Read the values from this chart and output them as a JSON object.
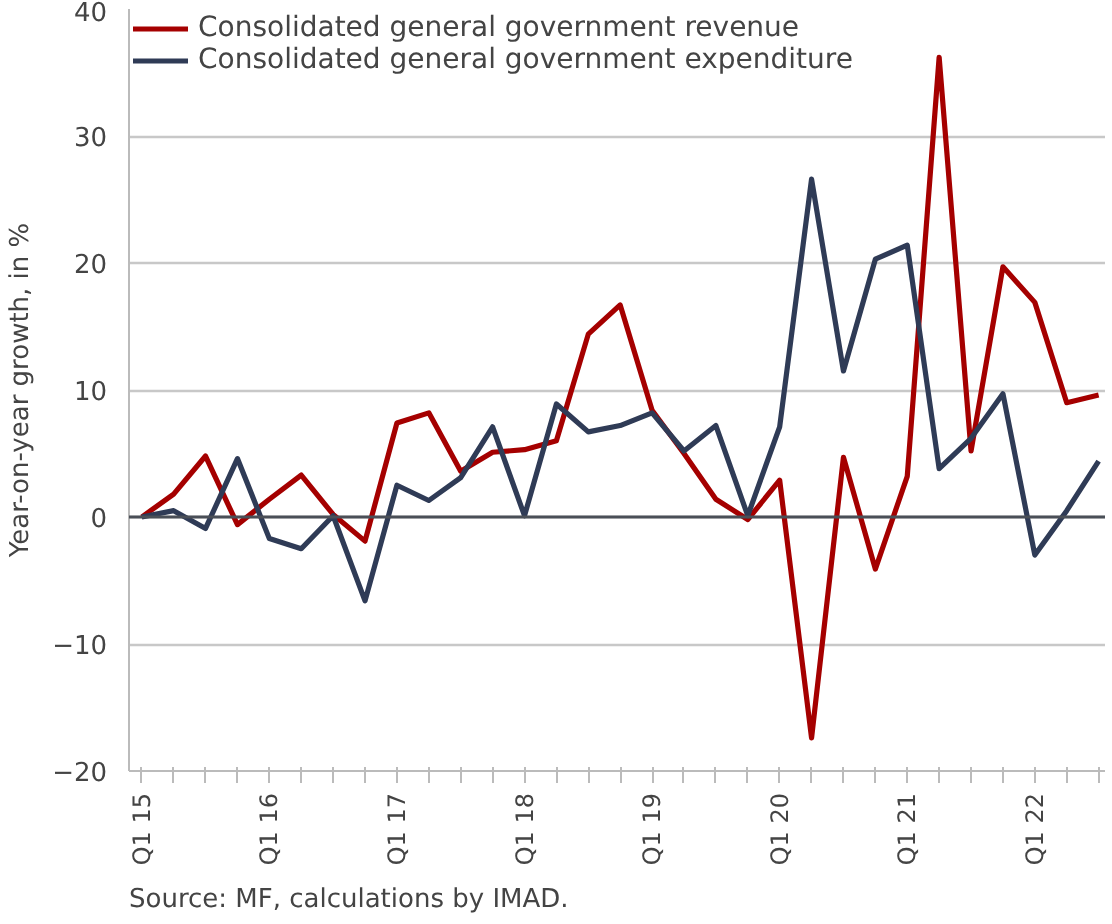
{
  "chart_data": {
    "type": "line",
    "categories": [
      "Q1 15",
      null,
      null,
      null,
      "Q1 16",
      null,
      null,
      null,
      "Q1 17",
      null,
      null,
      null,
      "Q1 18",
      null,
      null,
      null,
      "Q1 19",
      null,
      null,
      null,
      "Q1 20",
      null,
      null,
      null,
      "Q1 21",
      null,
      null,
      null,
      "Q1 22",
      null,
      null
    ],
    "series": [
      {
        "name": "Consolidated general government revenue",
        "color": "#a50000",
        "values": [
          0,
          1.8,
          4.8,
          -0.6,
          1.4,
          3.3,
          0.2,
          -1.9,
          7.4,
          8.2,
          3.6,
          5.1,
          5.3,
          6.0,
          14.4,
          16.7,
          8.4,
          5.0,
          1.4,
          -0.2,
          2.9,
          -17.4,
          4.7,
          -4.1,
          3.2,
          36.2,
          5.2,
          19.7,
          16.9,
          9.0,
          9.6
        ]
      },
      {
        "name": "Consolidated general government expenditure",
        "color": "#2f3b56",
        "values": [
          0,
          0.5,
          -0.9,
          4.6,
          -1.7,
          -2.5,
          0.1,
          -6.6,
          2.5,
          1.3,
          3.1,
          7.1,
          0.1,
          8.9,
          6.7,
          7.2,
          8.2,
          5.2,
          7.2,
          0.1,
          7.1,
          26.6,
          11.5,
          20.3,
          21.4,
          3.8,
          6.2,
          9.7,
          -3.0,
          0.5,
          4.4
        ]
      }
    ],
    "ylabel": "Year-on-year growth, in %",
    "ylim": [
      -20,
      40
    ],
    "yticks": [
      -20,
      -10,
      0,
      10,
      20,
      30,
      40
    ],
    "ref_lines": [
      {
        "axis": "y",
        "value": 0,
        "color": "#4a4f57"
      }
    ],
    "grid": "y",
    "legend": "top left",
    "line_style": "solid",
    "annotations": [
      "Source: MF, calculations by IMAD."
    ]
  }
}
